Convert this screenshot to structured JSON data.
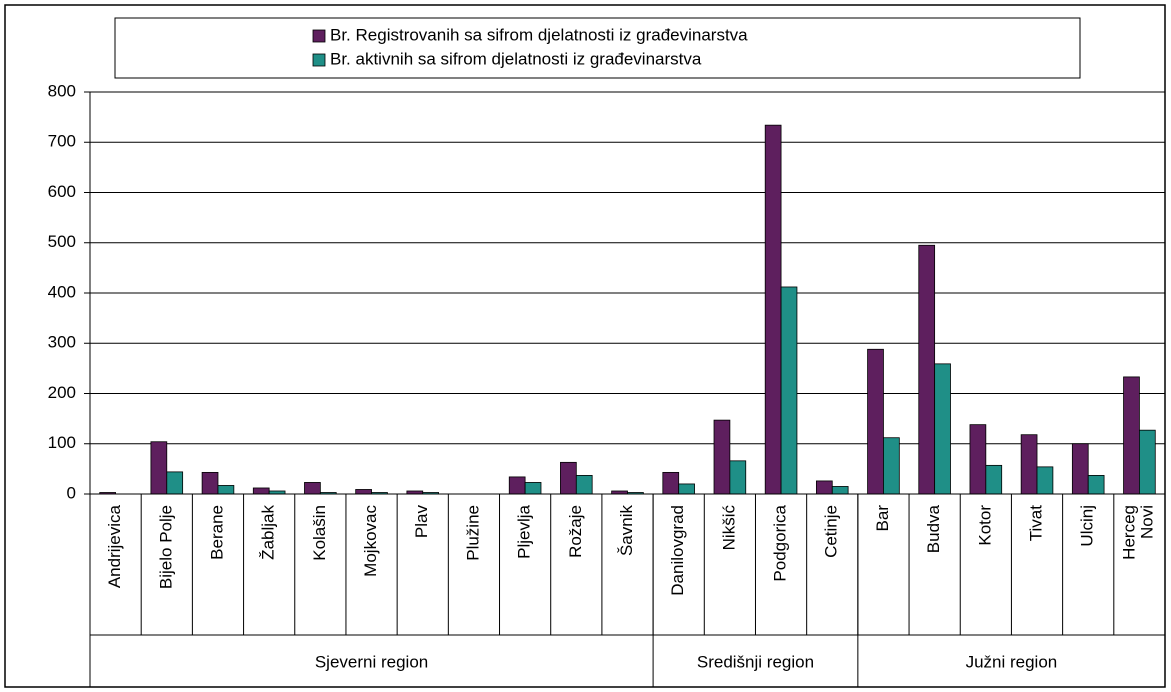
{
  "chart_data": {
    "type": "bar",
    "categories": [
      "Andrijevica",
      "Bijelo Polje",
      "Berane",
      "Žabljak",
      "Kolašin",
      "Mojkovac",
      "Plav",
      "Plužine",
      "Pljevlja",
      "Rožaje",
      "Šavnik",
      "Danilovgrad",
      "Nikšić",
      "Podgorica",
      "Cetinje",
      "Bar",
      "Budva",
      "Kotor",
      "Tivat",
      "Ulcinj",
      "Herceg\nNovi"
    ],
    "groups": [
      {
        "label": "Sjeverni region",
        "categories": 11
      },
      {
        "label": "Središnji region",
        "categories": 4
      },
      {
        "label": "Južni region",
        "categories": 6
      }
    ],
    "series": [
      {
        "name": "Br. Registrovanih sa sifrom djelatnosti iz građevinarstva",
        "color": "#5e1f5e",
        "values": [
          3,
          104,
          43,
          12,
          23,
          9,
          6,
          0,
          34,
          63,
          6,
          43,
          147,
          734,
          26,
          288,
          495,
          138,
          118,
          100,
          233
        ]
      },
      {
        "name": "Br. aktivnih sa sifrom djelatnosti iz građevinarstva",
        "color": "#1f8f87",
        "values": [
          0,
          44,
          17,
          6,
          3,
          3,
          3,
          0,
          23,
          37,
          3,
          20,
          66,
          412,
          15,
          112,
          259,
          57,
          54,
          37,
          127
        ]
      }
    ],
    "ylim": [
      0,
      800
    ],
    "yticks": [
      0,
      100,
      200,
      300,
      400,
      500,
      600,
      700,
      800
    ],
    "grid": true
  }
}
